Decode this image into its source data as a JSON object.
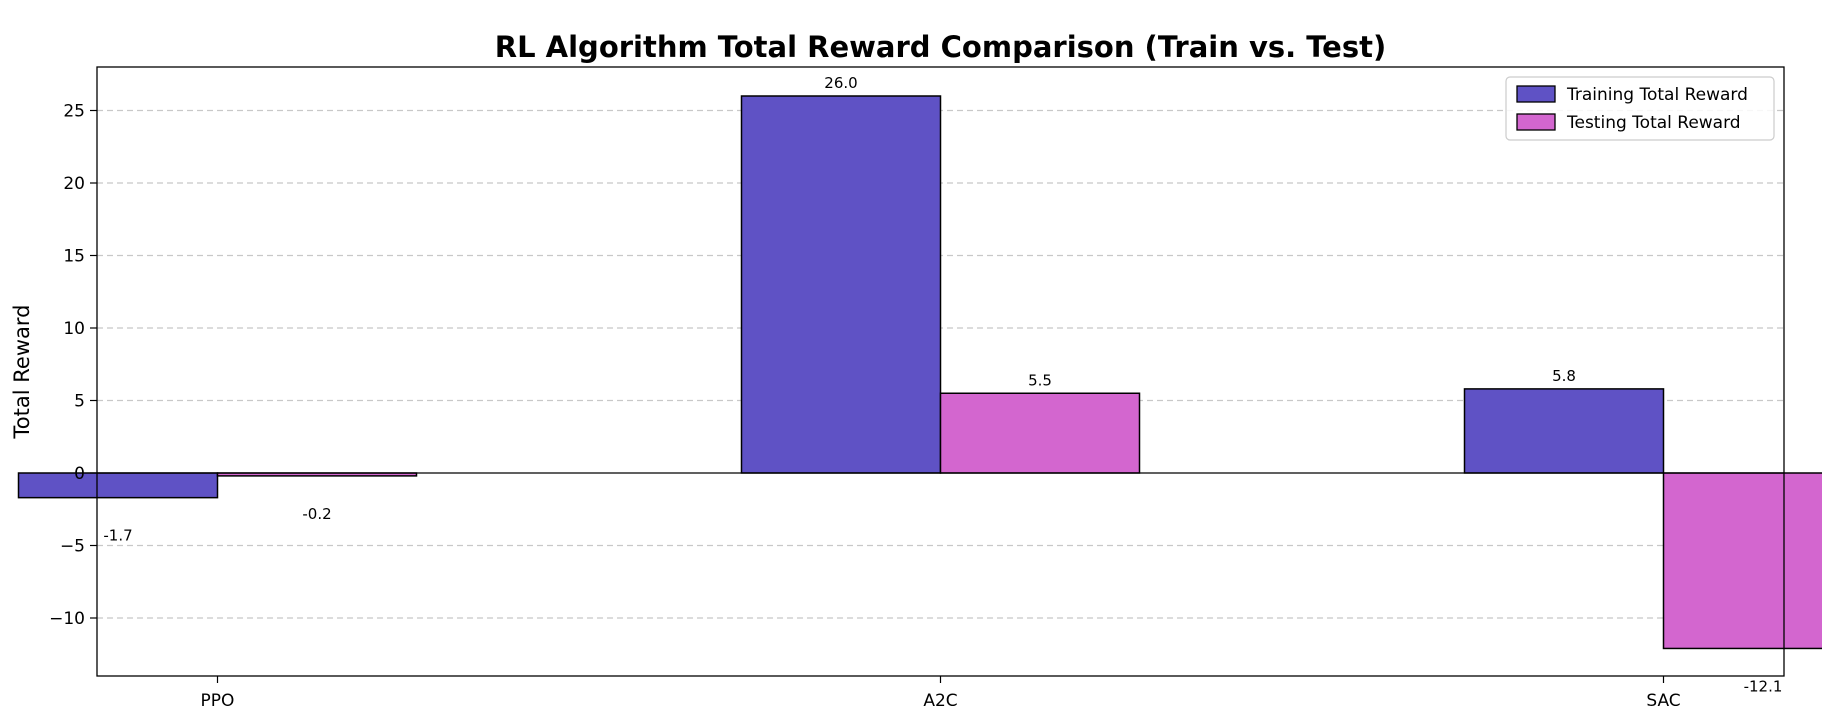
{
  "chart_data": {
    "type": "bar",
    "title": "RL Algorithm Total Reward Comparison (Train vs. Test)",
    "xlabel": "",
    "ylabel": "Total Reward",
    "categories": [
      "PPO",
      "A2C",
      "SAC"
    ],
    "series": [
      {
        "name": "Training Total Reward",
        "values": [
          -1.7,
          26.0,
          5.8
        ],
        "labels": [
          "-1.7",
          "26.0",
          "5.8"
        ],
        "color": "#5f52c5"
      },
      {
        "name": "Testing Total Reward",
        "values": [
          -0.2,
          5.5,
          -12.1
        ],
        "labels": [
          "-0.2",
          "5.5",
          "-12.1"
        ],
        "color": "#d366cf"
      }
    ],
    "ylim": [
      -14,
      28
    ],
    "yticks": [
      -10,
      -5,
      0,
      5,
      10,
      15,
      20,
      25
    ],
    "ytick_labels": [
      "−10",
      "−5",
      "0",
      "5",
      "10",
      "15",
      "20",
      "25"
    ],
    "grid": "y-dashed",
    "legend": "top-right"
  }
}
